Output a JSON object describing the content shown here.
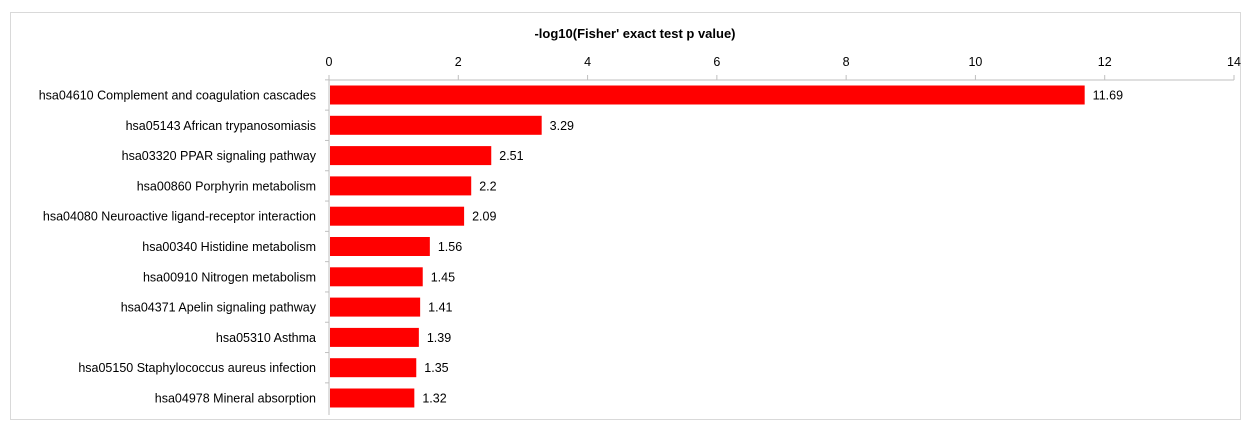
{
  "chart_data": {
    "type": "bar",
    "orientation": "horizontal",
    "title": "-log10(Fisher' exact test p value)",
    "axis_position": "top",
    "xlim": [
      0,
      14
    ],
    "xticks": [
      0,
      2,
      4,
      6,
      8,
      10,
      12,
      14
    ],
    "grid": false,
    "bar_color": "#ff0000",
    "categories": [
      "hsa04610 Complement and coagulation cascades",
      "hsa05143 African trypanosomiasis",
      "hsa03320 PPAR signaling pathway",
      "hsa00860 Porphyrin metabolism",
      "hsa04080 Neuroactive ligand-receptor interaction",
      "hsa00340 Histidine metabolism",
      "hsa00910 Nitrogen metabolism",
      "hsa04371 Apelin signaling pathway",
      "hsa05310 Asthma",
      "hsa05150 Staphylococcus aureus infection",
      "hsa04978 Mineral absorption"
    ],
    "values": [
      11.69,
      3.29,
      2.51,
      2.2,
      2.09,
      1.56,
      1.45,
      1.41,
      1.39,
      1.35,
      1.32
    ],
    "value_labels": [
      "11.69",
      "3.29",
      "2.51",
      "2.2",
      "2.09",
      "1.56",
      "1.45",
      "1.41",
      "1.39",
      "1.35",
      "1.32"
    ]
  }
}
